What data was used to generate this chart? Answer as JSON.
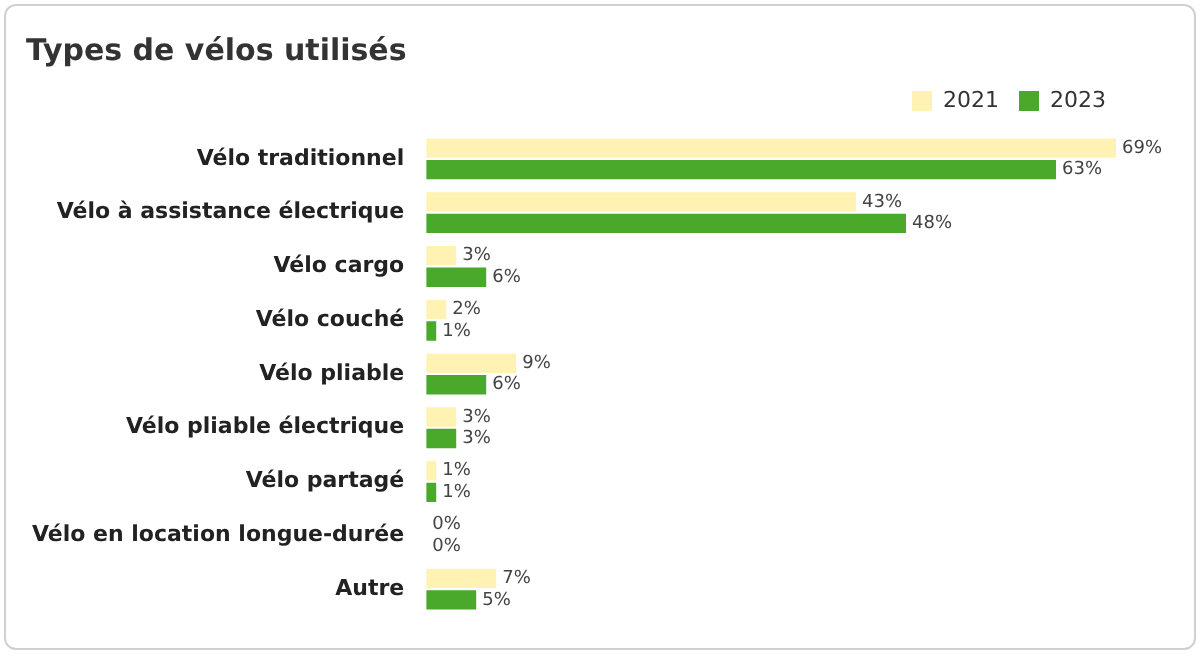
{
  "chart_data": {
    "type": "bar",
    "orientation": "horizontal",
    "title": "Types de vélos utilisés",
    "categories": [
      "Vélo traditionnel",
      "Vélo à assistance électrique",
      "Vélo cargo",
      "Vélo couché",
      "Vélo pliable",
      "Vélo pliable électrique",
      "Vélo partagé",
      "Vélo en location longue-durée",
      "Autre"
    ],
    "series": [
      {
        "name": "2021",
        "color": "#fff2b3",
        "values": [
          69,
          43,
          3,
          2,
          9,
          3,
          1,
          0,
          7
        ],
        "value_labels": [
          "69%",
          "43%",
          "3%",
          "2%",
          "9%",
          "3%",
          "1%",
          "0%",
          "7%"
        ]
      },
      {
        "name": "2023",
        "color": "#4aa82a",
        "values": [
          63,
          48,
          6,
          1,
          6,
          3,
          1,
          0,
          5
        ],
        "value_labels": [
          "63%",
          "48%",
          "6%",
          "1%",
          "6%",
          "3%",
          "1%",
          "0%",
          "5%"
        ]
      }
    ],
    "tick_labels": "y",
    "legend": "top right"
  }
}
